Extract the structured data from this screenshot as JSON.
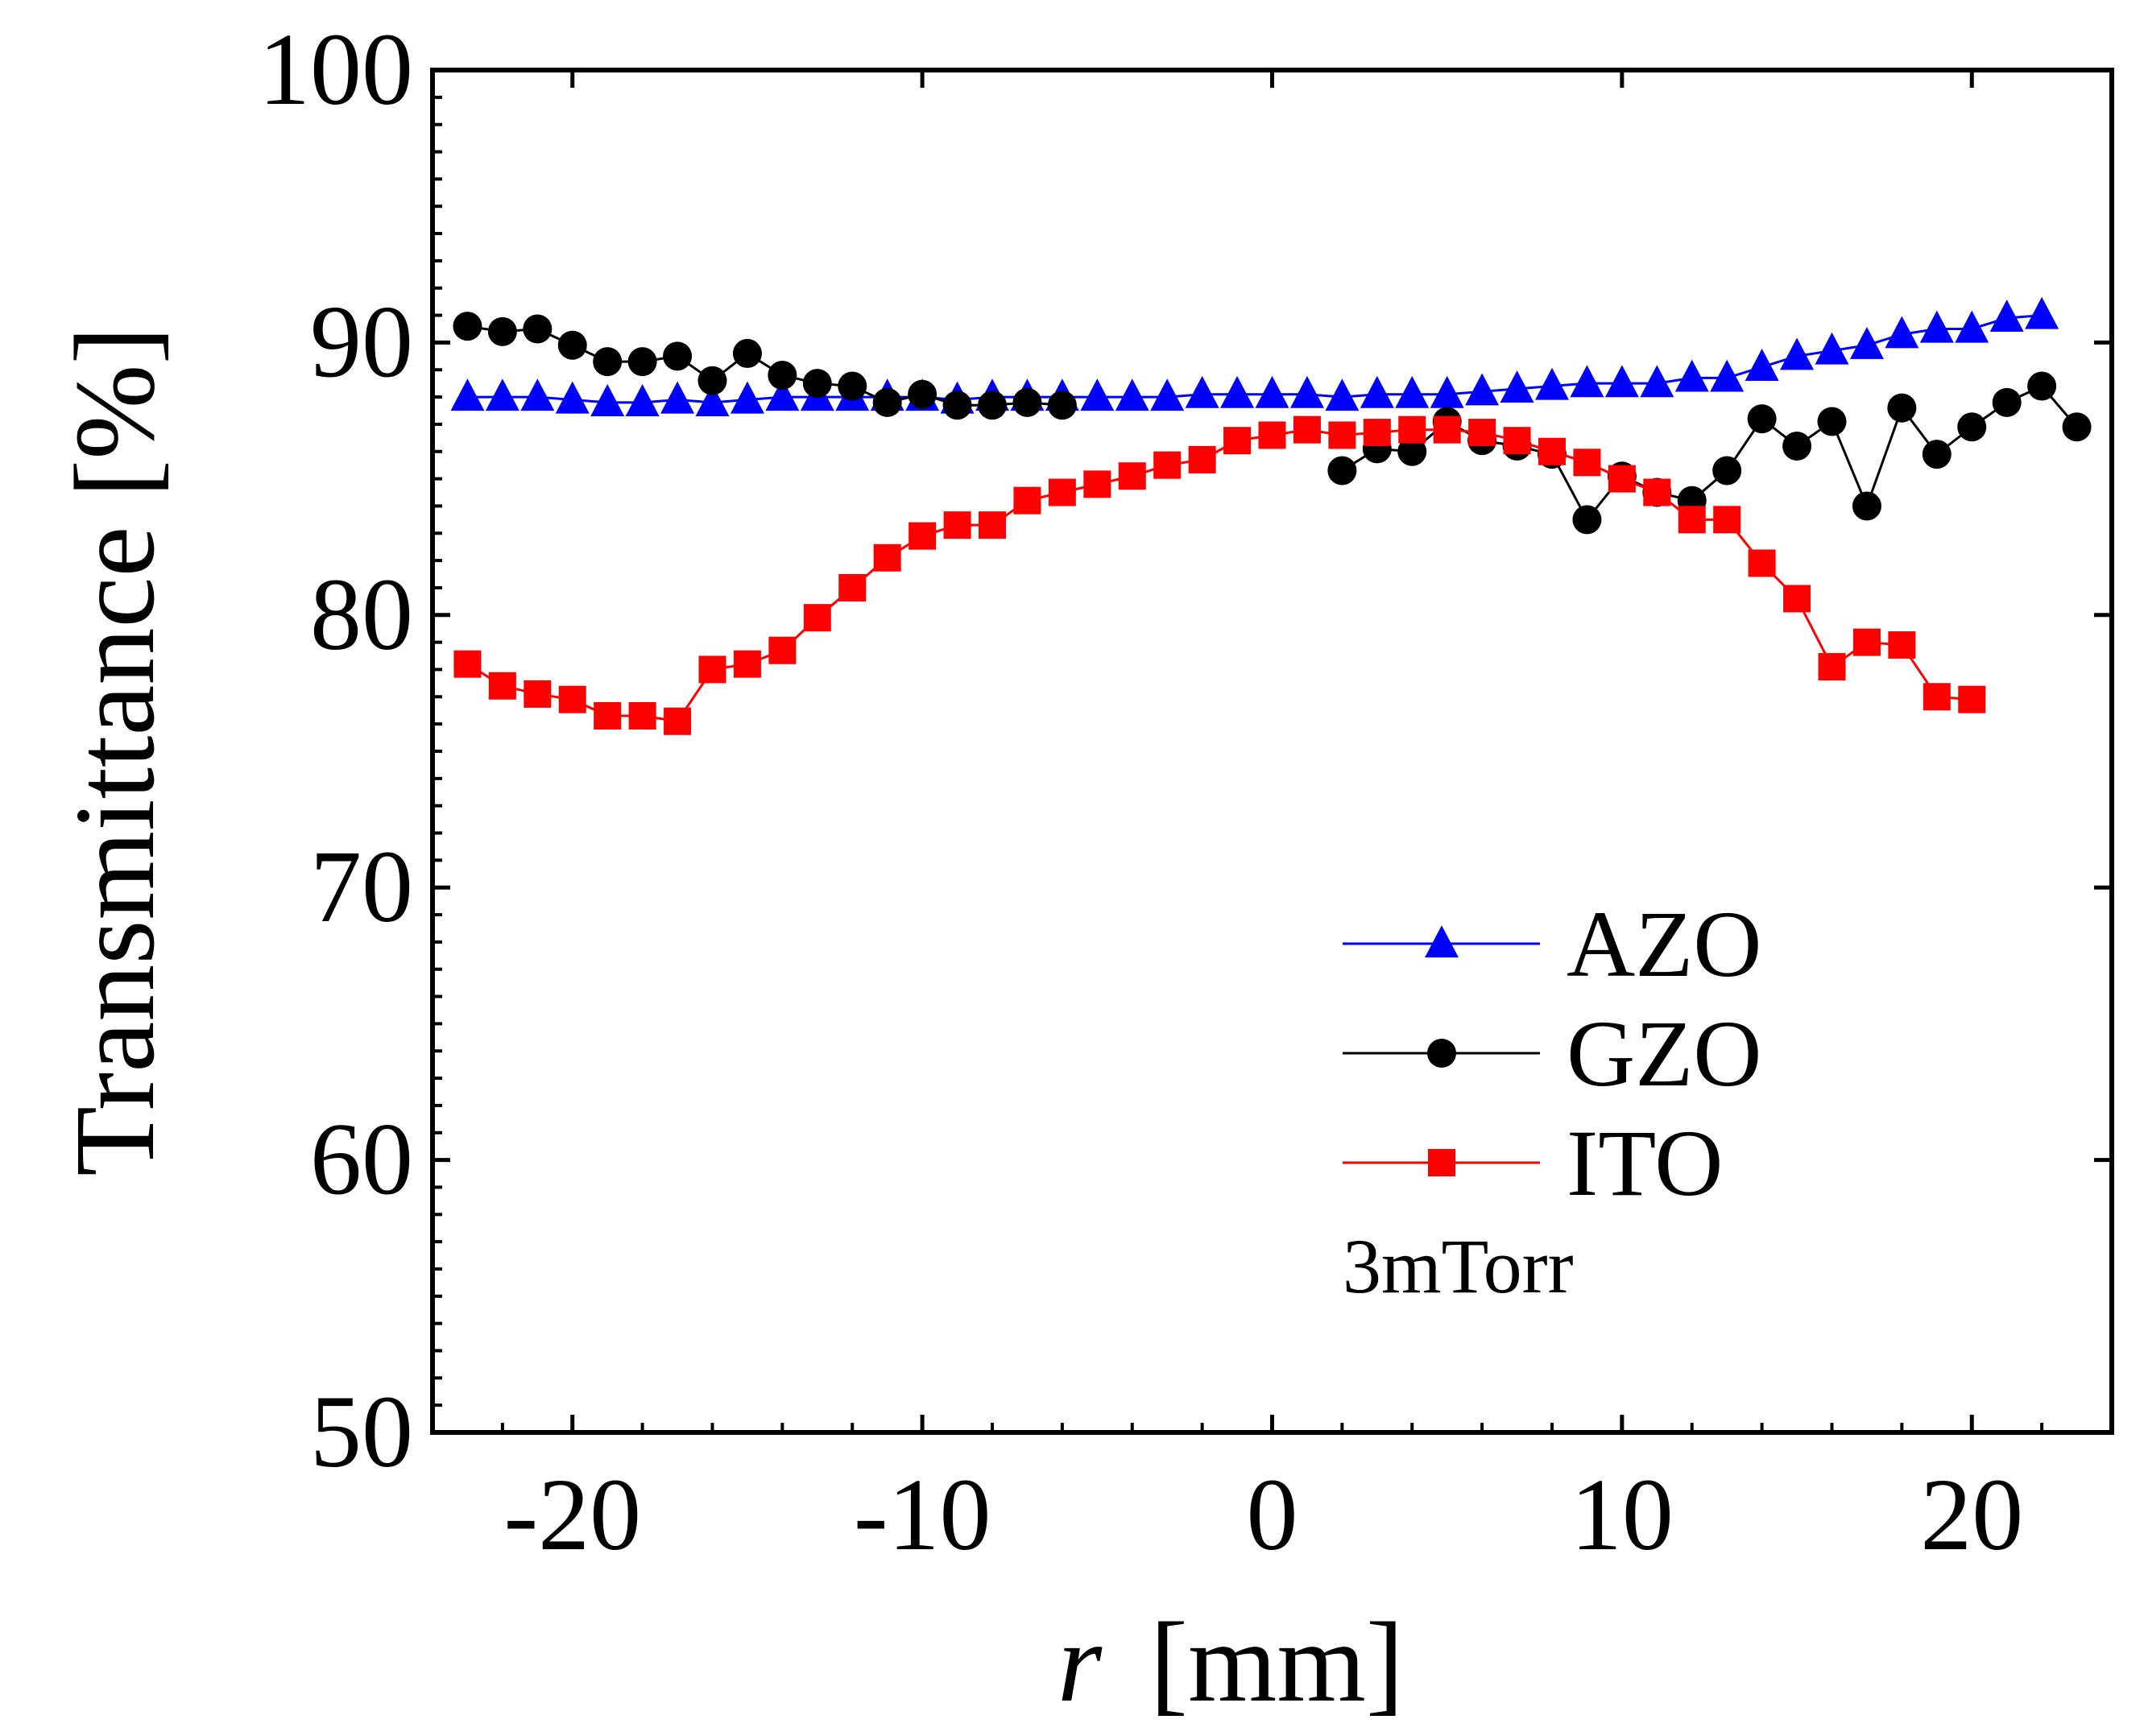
{
  "chart_data": {
    "type": "line",
    "title": "",
    "xlabel_italic": "r",
    "xlabel_unit": "[mm]",
    "ylabel": "Transmittance [%]",
    "xlim": [
      -24,
      24
    ],
    "ylim": [
      50,
      100
    ],
    "x_ticks": [
      -20,
      -10,
      0,
      10,
      20
    ],
    "x_tick_labels": [
      "-20",
      "-10",
      "0",
      "10",
      "20"
    ],
    "y_ticks": [
      50,
      60,
      70,
      80,
      90,
      100
    ],
    "y_tick_labels": [
      "50",
      "60",
      "70",
      "80",
      "90",
      "100"
    ],
    "grid": false,
    "legend_position": "lower-right",
    "annotation": "3mTorr",
    "series": [
      {
        "name": "AZO",
        "color": "#0000ff",
        "marker": "triangle",
        "x": [
          -23,
          -22,
          -21,
          -20,
          -19,
          -18,
          -17,
          -16,
          -15,
          -14,
          -13,
          -12,
          -11,
          -10,
          -9,
          -8,
          -7,
          -6,
          -5,
          -4,
          -3,
          -2,
          -1,
          0,
          1,
          2,
          3,
          4,
          5,
          6,
          7,
          8,
          9,
          10,
          11,
          12,
          13,
          14,
          15,
          16,
          17,
          18,
          19,
          20,
          21,
          22
        ],
        "y": [
          88.0,
          88.0,
          88.0,
          87.9,
          87.8,
          87.8,
          87.9,
          87.8,
          87.9,
          88.0,
          88.0,
          88.0,
          88.0,
          88.0,
          87.9,
          88.0,
          88.0,
          88.0,
          88.0,
          88.0,
          88.0,
          88.1,
          88.1,
          88.1,
          88.1,
          88.0,
          88.1,
          88.1,
          88.1,
          88.2,
          88.3,
          88.4,
          88.5,
          88.5,
          88.5,
          88.7,
          88.7,
          89.1,
          89.5,
          89.7,
          89.9,
          90.3,
          90.5,
          90.5,
          90.9,
          91.0
        ]
      },
      {
        "name": "GZO",
        "color": "#000000",
        "marker": "circle",
        "x": [
          -23,
          -22,
          -21,
          -20,
          -19,
          -18,
          -17,
          -16,
          -15,
          -14,
          -13,
          -12,
          -11,
          -10,
          -9,
          -8,
          -7,
          -6,
          2,
          3,
          4,
          5,
          6,
          7,
          8,
          9,
          10,
          11,
          12,
          13,
          14,
          15,
          16,
          17,
          18,
          19,
          20,
          21,
          22,
          23
        ],
        "y": [
          90.6,
          90.4,
          90.5,
          89.9,
          89.3,
          89.3,
          89.5,
          88.6,
          89.6,
          88.8,
          88.5,
          88.4,
          87.8,
          88.1,
          87.7,
          87.7,
          87.8,
          87.7,
          85.3,
          86.1,
          86.0,
          87.1,
          86.4,
          86.2,
          85.9,
          83.5,
          85.1,
          84.5,
          84.2,
          85.3,
          87.2,
          86.2,
          87.1,
          84.0,
          87.6,
          85.9,
          86.9,
          87.8,
          88.4,
          86.9
        ]
      },
      {
        "name": "ITO",
        "color": "#ff0000",
        "marker": "square",
        "x": [
          -23,
          -22,
          -21,
          -20,
          -19,
          -18,
          -17,
          -16,
          -15,
          -14,
          -13,
          -12,
          -11,
          -10,
          -9,
          -8,
          -7,
          -6,
          -5,
          -4,
          -3,
          -2,
          -1,
          0,
          1,
          2,
          3,
          4,
          5,
          6,
          7,
          8,
          9,
          10,
          11,
          12,
          13,
          14,
          15,
          16,
          17,
          18,
          19,
          20
        ],
        "y": [
          78.2,
          77.4,
          77.1,
          76.9,
          76.3,
          76.3,
          76.1,
          78.0,
          78.2,
          78.7,
          79.9,
          81.0,
          82.1,
          82.9,
          83.3,
          83.3,
          84.2,
          84.5,
          84.8,
          85.1,
          85.5,
          85.7,
          86.4,
          86.6,
          86.8,
          86.6,
          86.7,
          86.8,
          86.8,
          86.7,
          86.4,
          86.0,
          85.6,
          85.0,
          84.5,
          83.5,
          83.5,
          81.9,
          80.6,
          78.1,
          79.0,
          78.9,
          77.0,
          76.9
        ]
      }
    ]
  }
}
